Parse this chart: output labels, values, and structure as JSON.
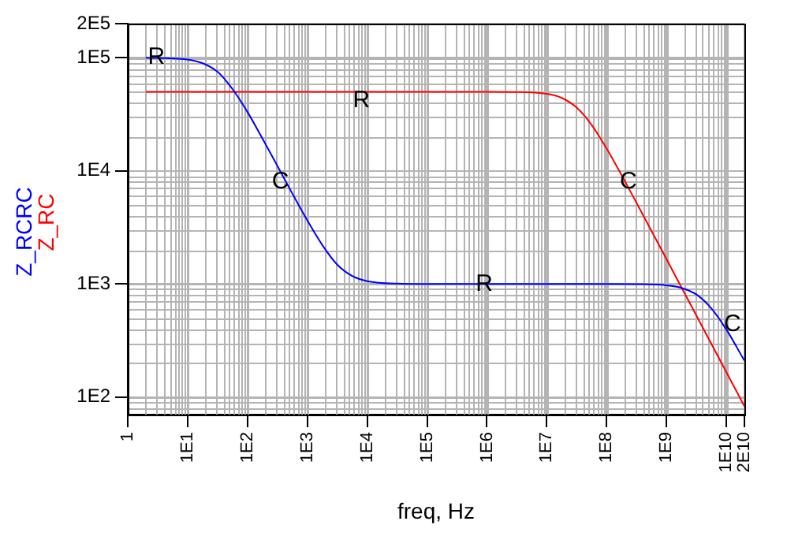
{
  "chart_data": {
    "type": "line",
    "xlabel": "freq, Hz",
    "log": "xy",
    "grid": true,
    "marker": "none",
    "line_style": "solid",
    "xlim": [
      1,
      20000000000
    ],
    "ylim": [
      70,
      200000
    ],
    "xticks": [
      {
        "value": 1,
        "label": "1"
      },
      {
        "value": 10,
        "label": "1E1"
      },
      {
        "value": 100,
        "label": "1E2"
      },
      {
        "value": 1000,
        "label": "1E3"
      },
      {
        "value": 10000,
        "label": "1E4"
      },
      {
        "value": 100000,
        "label": "1E5"
      },
      {
        "value": 1000000,
        "label": "1E6"
      },
      {
        "value": 10000000,
        "label": "1E7"
      },
      {
        "value": 100000000,
        "label": "1E8"
      },
      {
        "value": 1000000000,
        "label": "1E9"
      },
      {
        "value": 10000000000,
        "label": "1E10"
      },
      {
        "value": 20000000000,
        "label": "2E10"
      }
    ],
    "yticks": [
      {
        "value": 100,
        "label": "1E2"
      },
      {
        "value": 1000,
        "label": "1E3"
      },
      {
        "value": 10000,
        "label": "1E4"
      },
      {
        "value": 100000,
        "label": "1E5"
      },
      {
        "value": 200000,
        "label": "2E5"
      }
    ],
    "series": [
      {
        "name": "Z_RCRC",
        "color": "#0000ff",
        "x": [
          2,
          10,
          31.6,
          56.2,
          100,
          177.8,
          316,
          562,
          1000,
          1778,
          3162,
          5623,
          10000,
          31623,
          100000,
          1000000,
          100000000,
          316000000,
          1000000000,
          1778000000,
          3162000000,
          5623000000,
          10000000000,
          20000000000
        ],
        "values": [
          99800,
          96300,
          75200,
          52800,
          33100,
          19300,
          11060,
          6290,
          3640,
          2210,
          1480,
          1174,
          1058,
          1006,
          1000,
          1000,
          1000,
          997,
          974,
          924,
          806,
          607,
          395,
          210
        ]
      },
      {
        "name": "Z_RC",
        "color": "#ff0000",
        "x": [
          2,
          1000,
          1000000,
          3162000,
          10000000,
          17780000,
          31620000,
          56230000,
          100000000,
          316200000,
          1000000000,
          3162000000,
          10000000000,
          20000000000
        ],
        "values": [
          50000,
          50000,
          50000,
          49800,
          47900,
          44100,
          36200,
          25400,
          15700,
          5200,
          1660,
          524,
          166,
          83
        ]
      }
    ],
    "annotations": [
      {
        "text": "R",
        "x": 3,
        "y": 100000
      },
      {
        "text": "C",
        "x": 355,
        "y": 8000
      },
      {
        "text": "R",
        "x": 8000,
        "y": 42000
      },
      {
        "text": "C",
        "x": 230000000,
        "y": 8000
      },
      {
        "text": "R",
        "x": 900000,
        "y": 1000
      },
      {
        "text": "C",
        "x": 12600000000,
        "y": 440
      }
    ]
  }
}
